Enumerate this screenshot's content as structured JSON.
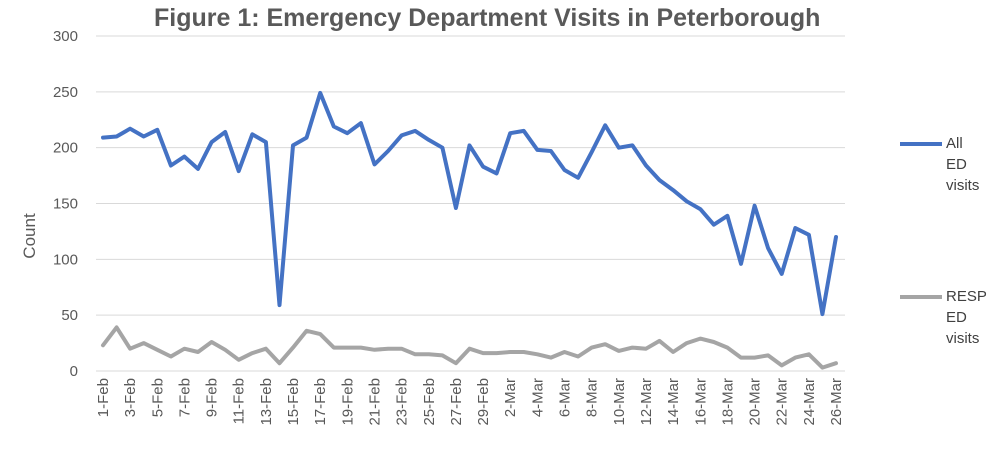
{
  "chart_data": {
    "type": "line",
    "title": "Figure 1: Emergency Department Visits in Peterborough",
    "ylabel": "Count",
    "xlabel": "",
    "ylim": [
      0,
      300
    ],
    "yticks": [
      0,
      50,
      100,
      150,
      200,
      250,
      300
    ],
    "grid": true,
    "legend_position": "right",
    "categories": [
      "1-Feb",
      "2-Feb",
      "3-Feb",
      "4-Feb",
      "5-Feb",
      "6-Feb",
      "7-Feb",
      "8-Feb",
      "9-Feb",
      "10-Feb",
      "11-Feb",
      "12-Feb",
      "13-Feb",
      "14-Feb",
      "15-Feb",
      "16-Feb",
      "17-Feb",
      "18-Feb",
      "19-Feb",
      "20-Feb",
      "21-Feb",
      "22-Feb",
      "23-Feb",
      "24-Feb",
      "25-Feb",
      "26-Feb",
      "27-Feb",
      "28-Feb",
      "29-Feb",
      "1-Mar",
      "2-Mar",
      "3-Mar",
      "4-Mar",
      "5-Mar",
      "6-Mar",
      "7-Mar",
      "8-Mar",
      "9-Mar",
      "10-Mar",
      "11-Mar",
      "12-Mar",
      "13-Mar",
      "14-Mar",
      "15-Mar",
      "16-Mar",
      "17-Mar",
      "18-Mar",
      "19-Mar",
      "20-Mar",
      "21-Mar",
      "22-Mar",
      "23-Mar",
      "24-Mar",
      "25-Mar",
      "26-Mar"
    ],
    "x_tick_labels": [
      "1-Feb",
      "3-Feb",
      "5-Feb",
      "7-Feb",
      "9-Feb",
      "11-Feb",
      "13-Feb",
      "15-Feb",
      "17-Feb",
      "19-Feb",
      "21-Feb",
      "23-Feb",
      "25-Feb",
      "27-Feb",
      "29-Feb",
      "2-Mar",
      "4-Mar",
      "6-Mar",
      "8-Mar",
      "10-Mar",
      "12-Mar",
      "14-Mar",
      "16-Mar",
      "18-Mar",
      "20-Mar",
      "22-Mar",
      "24-Mar",
      "26-Mar"
    ],
    "series": [
      {
        "name": "All ED visits",
        "color": "#4472C4",
        "values": [
          209,
          210,
          217,
          210,
          216,
          184,
          192,
          181,
          205,
          214,
          179,
          212,
          205,
          59,
          202,
          209,
          249,
          219,
          213,
          222,
          185,
          197,
          211,
          215,
          207,
          200,
          146,
          202,
          183,
          177,
          213,
          215,
          198,
          197,
          180,
          173,
          196,
          220,
          200,
          202,
          184,
          171,
          162,
          152,
          145,
          131,
          139,
          96,
          148,
          110,
          87,
          128,
          122,
          51,
          120
        ]
      },
      {
        "name": "RESP ED visits",
        "color": "#A5A5A5",
        "values": [
          23,
          39,
          20,
          25,
          19,
          13,
          20,
          17,
          26,
          19,
          10,
          16,
          20,
          7,
          21,
          36,
          33,
          21,
          21,
          21,
          19,
          20,
          20,
          15,
          15,
          14,
          7,
          20,
          16,
          16,
          17,
          17,
          15,
          12,
          17,
          13,
          21,
          24,
          18,
          21,
          20,
          27,
          17,
          25,
          29,
          26,
          21,
          12,
          12,
          14,
          5,
          12,
          15,
          3,
          7
        ]
      }
    ]
  },
  "legend": [
    {
      "lines": [
        "All",
        "ED",
        "visits"
      ],
      "color": "#4472C4"
    },
    {
      "lines": [
        "RESP",
        "ED",
        "visits"
      ],
      "color": "#A5A5A5"
    }
  ]
}
